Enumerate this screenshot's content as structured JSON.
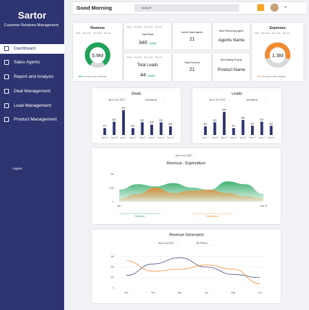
{
  "sidebar": {
    "brand": "Sartor",
    "tagline": "Customer Relations Management",
    "nav": [
      "Dashboard",
      "Sales Agents",
      "Report and Analysis",
      "Deal Management",
      "Lead Management",
      "Product Management"
    ],
    "logout": "Logout"
  },
  "header": {
    "greeting": "Good Morning",
    "search": "Search"
  },
  "revenue_card": {
    "title": "Revenue",
    "tabs": [
      "Today",
      "This week",
      "This month",
      "This year"
    ],
    "value": "5.9M",
    "change": "80%",
    "note": "Increase over yesterday"
  },
  "expenses_card": {
    "title": "Expenses",
    "tabs": [
      "Today",
      "This week",
      "This month",
      "This year"
    ],
    "value": "1.3M",
    "change": "60%",
    "note": "Decrease over yesterday"
  },
  "stats": [
    {
      "label": "Total Deals",
      "tabs": [
        "Today",
        "This week",
        "This month",
        "This year"
      ],
      "value": "340",
      "change": "+ 2.3%"
    },
    {
      "label": "Total Leads",
      "tabs": [
        "Today",
        "This week",
        "This month",
        "This year"
      ],
      "value": "44",
      "change": "+ 2.3%"
    },
    {
      "label": "Active Sales Agents",
      "value": "21"
    },
    {
      "label": "Total Products",
      "value": "21"
    },
    {
      "label": "Best Performing Agent",
      "value": "Agents Name"
    },
    {
      "label": "Best Selling Product",
      "value": "Product Name"
    }
  ],
  "chart_data": [
    {
      "type": "bar",
      "title": "Deals",
      "filters": [
        "Jan to Jun, 2023",
        "Add Agents"
      ],
      "categories": [
        "Agent A",
        "Agent B",
        "Agent C",
        "Agent D",
        "Agent E",
        "Agent F",
        "Agent G",
        "Agent H"
      ],
      "values": [
        12,
        23,
        43,
        12,
        22,
        18,
        22,
        15
      ],
      "value_labels": [
        "$12",
        "$23",
        "$43",
        "$12",
        "$22",
        "$18",
        "$22",
        "$15"
      ],
      "color": "#2e3470",
      "ylim": [
        0,
        50
      ]
    },
    {
      "type": "bar",
      "title": "Leads",
      "filters": [
        "Jan to Jun, 2023",
        "Add Agents"
      ],
      "categories": [
        "Agent A",
        "Agent B",
        "Agent C",
        "Agent D",
        "Agent E",
        "Agent F",
        "Agent G",
        "Agent H"
      ],
      "values": [
        15,
        22,
        40,
        12,
        26,
        16,
        23,
        16
      ],
      "value_labels": [
        "$15",
        "$22",
        "$40",
        "$12",
        "$26",
        "$16",
        "$23",
        "$16"
      ],
      "color": "#2e3470",
      "ylim": [
        0,
        50
      ]
    },
    {
      "type": "area",
      "title": "Revenue - Expenditure",
      "filters": [
        "Jan to Jun, 2023"
      ],
      "categories": [
        "Jan 1",
        null,
        null,
        null,
        null,
        null,
        null,
        null,
        "June 25"
      ],
      "series": [
        {
          "name": "Revenue",
          "color": "#1fa35a",
          "values": [
            2.2,
            3.2,
            2.8,
            3.4,
            2.6,
            2.2,
            3.7,
            3.2,
            1.4
          ]
        },
        {
          "name": "Expenditure",
          "color": "#f28a30",
          "values": [
            0.6,
            1.4,
            2.6,
            1.6,
            2.0,
            2.2,
            1.6,
            1.0,
            0.6
          ]
        }
      ],
      "ylim": [
        0,
        5.5
      ],
      "yticks": [
        {
          "value": 0,
          "label": "0"
        },
        {
          "value": 2.5,
          "label": "2.5M"
        },
        {
          "value": 5,
          "label": "5M"
        }
      ]
    },
    {
      "type": "line",
      "title": "Revenue Generated",
      "filters": [
        "Jan to Jun 2023",
        "By Product"
      ],
      "categories": [
        "Jan",
        "Feb",
        "Mar",
        "Apr",
        "May",
        "Jun"
      ],
      "series": [
        {
          "color": "#3b4a78",
          "values": [
            1.2,
            2.3,
            2.9,
            2.0,
            1.3,
            1.0
          ]
        },
        {
          "color": "#f28a30",
          "values": [
            2.6,
            1.6,
            1.8,
            2.2,
            1.8,
            0.4
          ]
        }
      ],
      "ylim": [
        0,
        3.5
      ],
      "yticks": [
        {
          "value": 0,
          "label": "0"
        },
        {
          "value": 1,
          "label": "1M"
        },
        {
          "value": 2,
          "label": "2M"
        },
        {
          "value": 3,
          "label": "3M"
        }
      ],
      "grid": true
    }
  ]
}
